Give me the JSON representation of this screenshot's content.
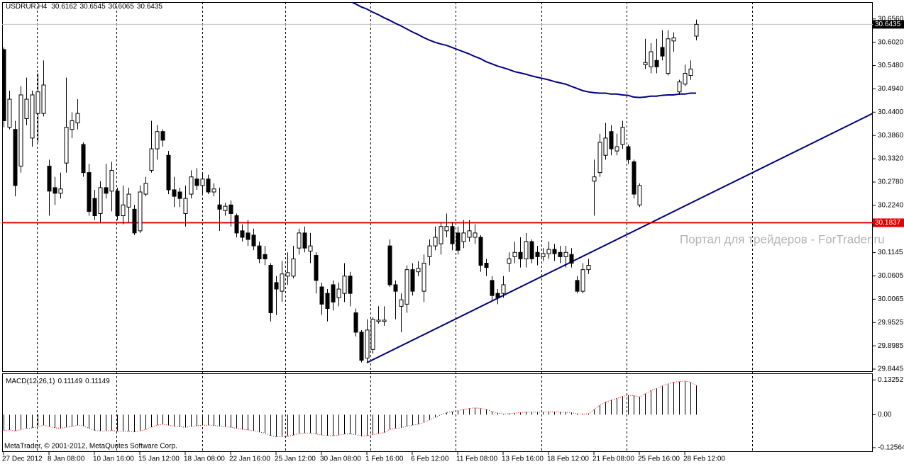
{
  "chart_data": {
    "type": "candlestick",
    "title": "USDRUR,H4",
    "categories": [
      "27 Dec 2012",
      null,
      null,
      null,
      null,
      null,
      null,
      null,
      "8 Jan 08:00",
      null,
      null,
      null,
      null,
      null,
      null,
      null,
      "10 Jan 16:00",
      null,
      null,
      null,
      null,
      null,
      null,
      null,
      "15 Jan 12:00",
      null,
      null,
      null,
      null,
      null,
      null,
      null,
      "18 Jan 08:00",
      null,
      null,
      null,
      null,
      null,
      null,
      null,
      "22 Jan 16:00",
      null,
      null,
      null,
      null,
      null,
      null,
      null,
      "25 Jan 12:00",
      null,
      null,
      null,
      null,
      null,
      null,
      null,
      "30 Jan 08:00",
      null,
      null,
      null,
      null,
      null,
      null,
      null,
      "1 Feb 16:00",
      null,
      null,
      null,
      null,
      null,
      null,
      null,
      "6 Feb 12:00",
      null,
      null,
      null,
      null,
      null,
      null,
      null,
      "11 Feb 08:00",
      null,
      null,
      null,
      null,
      null,
      null,
      null,
      "13 Feb 16:00",
      null,
      null,
      null,
      null,
      null,
      null,
      null,
      "18 Feb 12:00",
      null,
      null,
      null,
      null,
      null,
      null,
      null,
      "21 Feb 08:00",
      null,
      null,
      null,
      null,
      null,
      null,
      null,
      "25 Feb 16:00",
      null,
      null,
      null,
      null,
      null,
      null,
      null,
      "28 Feb 12:00",
      null,
      null
    ],
    "ohlc": [
      [
        30.585,
        30.59,
        30.405,
        30.42
      ],
      [
        30.405,
        30.49,
        30.4,
        30.47
      ],
      [
        30.4,
        30.42,
        30.245,
        30.27
      ],
      [
        30.315,
        30.5,
        30.3,
        30.48
      ],
      [
        30.425,
        30.52,
        30.41,
        30.47
      ],
      [
        30.38,
        30.49,
        30.36,
        30.48
      ],
      [
        30.437,
        30.53,
        30.37,
        30.487
      ],
      [
        30.437,
        30.56,
        30.43,
        30.503
      ],
      [
        30.315,
        30.33,
        30.2,
        30.257
      ],
      [
        30.265,
        30.29,
        30.225,
        30.252
      ],
      [
        30.252,
        30.3,
        30.24,
        30.262
      ],
      [
        30.322,
        30.52,
        30.3,
        30.405
      ],
      [
        30.4,
        30.44,
        30.38,
        30.42
      ],
      [
        30.415,
        30.47,
        30.4,
        30.437
      ],
      [
        30.365,
        30.37,
        30.29,
        30.3
      ],
      [
        30.3,
        30.32,
        30.2,
        30.21
      ],
      [
        30.24,
        30.26,
        30.19,
        30.2
      ],
      [
        30.205,
        30.28,
        30.185,
        30.265
      ],
      [
        30.265,
        30.32,
        30.24,
        30.252
      ],
      [
        30.257,
        30.325,
        30.21,
        30.305
      ],
      [
        30.257,
        30.265,
        30.19,
        30.2
      ],
      [
        30.2,
        30.27,
        30.18,
        30.225
      ],
      [
        30.22,
        30.265,
        30.185,
        30.25
      ],
      [
        30.215,
        30.225,
        30.155,
        30.16
      ],
      [
        30.165,
        30.27,
        30.16,
        30.255
      ],
      [
        30.25,
        30.29,
        30.245,
        30.275
      ],
      [
        30.305,
        30.42,
        30.3,
        30.355
      ],
      [
        30.355,
        30.41,
        30.33,
        30.395
      ],
      [
        30.395,
        30.4,
        30.36,
        30.375
      ],
      [
        30.34,
        30.35,
        30.25,
        30.26
      ],
      [
        30.26,
        30.29,
        30.22,
        30.245
      ],
      [
        30.255,
        30.265,
        30.22,
        30.24
      ],
      [
        30.205,
        30.27,
        30.175,
        30.24
      ],
      [
        30.25,
        30.305,
        30.24,
        30.29
      ],
      [
        30.285,
        30.31,
        30.26,
        30.27
      ],
      [
        30.27,
        30.3,
        30.25,
        30.285
      ],
      [
        30.285,
        30.295,
        30.25,
        30.255
      ],
      [
        30.255,
        30.275,
        30.245,
        30.262
      ],
      [
        30.225,
        30.265,
        30.165,
        30.215
      ],
      [
        30.212,
        30.23,
        30.2,
        30.222
      ],
      [
        30.225,
        30.235,
        30.175,
        30.205
      ],
      [
        30.2,
        30.205,
        30.15,
        30.16
      ],
      [
        30.165,
        30.18,
        30.14,
        30.15
      ],
      [
        30.16,
        30.19,
        30.13,
        30.145
      ],
      [
        30.155,
        30.17,
        30.12,
        30.13
      ],
      [
        30.13,
        30.14,
        30.09,
        30.1
      ],
      [
        30.11,
        30.13,
        30.085,
        30.1
      ],
      [
        30.085,
        30.09,
        29.955,
        29.975
      ],
      [
        30.045,
        30.06,
        29.97,
        30.03
      ],
      [
        30.025,
        30.095,
        30.0,
        30.065
      ],
      [
        30.06,
        30.115,
        30.04,
        30.068
      ],
      [
        30.06,
        30.13,
        30.055,
        30.1
      ],
      [
        30.125,
        30.17,
        30.11,
        30.16
      ],
      [
        30.16,
        30.175,
        30.115,
        30.125
      ],
      [
        30.118,
        30.16,
        30.09,
        30.13
      ],
      [
        30.108,
        30.115,
        30.02,
        30.05
      ],
      [
        30.035,
        30.045,
        29.97,
        29.995
      ],
      [
        30.02,
        30.03,
        29.955,
        29.985
      ],
      [
        30.04,
        30.05,
        29.98,
        30.0
      ],
      [
        30.01,
        30.045,
        29.99,
        30.03
      ],
      [
        30.02,
        30.09,
        30.0,
        30.06
      ],
      [
        30.06,
        30.07,
        29.99,
        30.02
      ],
      [
        29.975,
        29.985,
        29.92,
        29.93
      ],
      [
        29.93,
        29.935,
        29.86,
        29.865
      ],
      [
        29.87,
        29.96,
        29.86,
        29.935
      ],
      [
        29.89,
        29.965,
        29.88,
        29.96
      ],
      [
        29.955,
        29.99,
        29.95,
        29.958
      ],
      [
        29.955,
        29.99,
        29.945,
        29.958
      ],
      [
        30.13,
        30.145,
        30.035,
        30.04
      ],
      [
        30.04,
        30.05,
        29.96,
        30.025
      ],
      [
        29.99,
        30.02,
        29.93,
        30.005
      ],
      [
        29.995,
        30.085,
        29.975,
        30.075
      ],
      [
        30.075,
        30.09,
        30.015,
        30.025
      ],
      [
        30.07,
        30.095,
        30.06,
        30.078
      ],
      [
        30.025,
        30.11,
        30.0,
        30.09
      ],
      [
        30.105,
        30.145,
        30.085,
        30.13
      ],
      [
        30.13,
        30.175,
        30.12,
        30.15
      ],
      [
        30.135,
        30.185,
        30.11,
        30.175
      ],
      [
        30.165,
        30.205,
        30.15,
        30.175
      ],
      [
        30.175,
        30.185,
        30.12,
        30.135
      ],
      [
        30.16,
        30.175,
        30.11,
        30.12
      ],
      [
        30.14,
        30.19,
        30.125,
        30.16
      ],
      [
        30.15,
        30.19,
        30.14,
        30.165
      ],
      [
        30.15,
        30.18,
        30.135,
        30.16
      ],
      [
        30.15,
        30.155,
        30.07,
        30.085
      ],
      [
        30.09,
        30.1,
        30.06,
        30.08
      ],
      [
        30.05,
        30.06,
        30.005,
        30.015
      ],
      [
        30.02,
        30.03,
        29.995,
        30.01
      ],
      [
        30.02,
        30.06,
        30.01,
        30.04
      ],
      [
        30.09,
        30.115,
        30.07,
        30.1
      ],
      [
        30.105,
        30.14,
        30.09,
        30.115
      ],
      [
        30.115,
        30.15,
        30.08,
        30.1
      ],
      [
        30.1,
        30.16,
        30.08,
        30.14
      ],
      [
        30.14,
        30.145,
        30.09,
        30.1
      ],
      [
        30.115,
        30.13,
        30.085,
        30.105
      ],
      [
        30.105,
        30.125,
        30.095,
        30.112
      ],
      [
        30.112,
        30.14,
        30.1,
        30.122
      ],
      [
        30.122,
        30.135,
        30.095,
        30.112
      ],
      [
        30.115,
        30.13,
        30.09,
        30.105
      ],
      [
        30.105,
        30.13,
        30.08,
        30.115
      ],
      [
        30.11,
        30.125,
        30.08,
        30.09
      ],
      [
        30.05,
        30.06,
        30.02,
        30.025
      ],
      [
        30.025,
        30.09,
        30.02,
        30.075
      ],
      [
        30.075,
        30.1,
        30.065,
        30.085
      ],
      [
        30.28,
        30.33,
        30.2,
        30.29
      ],
      [
        30.3,
        30.39,
        30.29,
        30.37
      ],
      [
        30.34,
        30.415,
        30.33,
        30.38
      ],
      [
        30.395,
        30.41,
        30.34,
        30.355
      ],
      [
        30.35,
        30.39,
        30.34,
        30.36
      ],
      [
        30.365,
        30.42,
        30.355,
        30.405
      ],
      [
        30.36,
        30.365,
        30.32,
        30.33
      ],
      [
        30.325,
        30.33,
        30.24,
        30.25
      ],
      [
        30.225,
        30.275,
        30.22,
        30.27
      ],
      [
        30.55,
        30.61,
        30.54,
        30.555
      ],
      [
        30.545,
        30.6,
        30.53,
        30.58
      ],
      [
        30.56,
        30.61,
        30.53,
        30.545
      ],
      [
        30.59,
        30.63,
        30.56,
        30.57
      ],
      [
        30.53,
        30.63,
        30.525,
        30.61
      ],
      [
        30.605,
        30.625,
        30.58,
        30.612
      ],
      [
        30.487,
        30.515,
        30.48,
        30.51
      ],
      [
        30.505,
        30.55,
        30.5,
        30.53
      ],
      [
        30.525,
        30.56,
        30.515,
        30.54
      ],
      [
        30.6162,
        30.6545,
        30.6065,
        30.6435
      ]
    ],
    "up_color": "#ffffff",
    "down_color": "#000000",
    "ylim": [
      29.838,
      30.695
    ],
    "yticks": [
      {
        "value": 30.656,
        "label": "30.6560"
      },
      {
        "value": 30.602,
        "label": "30.6020"
      },
      {
        "value": 30.548,
        "label": "30.5480"
      },
      {
        "value": 30.494,
        "label": "30.4940"
      },
      {
        "value": 30.44,
        "label": "30.4400"
      },
      {
        "value": 30.386,
        "label": "30.3860"
      },
      {
        "value": 30.332,
        "label": "30.3320"
      },
      {
        "value": 30.278,
        "label": "30.2780"
      },
      {
        "value": 30.224,
        "label": "30.2240"
      },
      30.1145,
      30.0605,
      30.0065,
      29.9525,
      29.8985,
      29.8445
    ],
    "ma": {
      "color": "#000080",
      "values": [
        null,
        null,
        null,
        null,
        null,
        null,
        null,
        null,
        null,
        null,
        null,
        null,
        null,
        null,
        null,
        null,
        null,
        null,
        null,
        null,
        null,
        null,
        null,
        null,
        null,
        null,
        null,
        null,
        null,
        null,
        null,
        null,
        null,
        null,
        null,
        null,
        null,
        null,
        null,
        null,
        null,
        null,
        null,
        null,
        null,
        null,
        null,
        null,
        null,
        null,
        null,
        null,
        null,
        null,
        null,
        null,
        null,
        null,
        null,
        null,
        null,
        30.697,
        30.691,
        30.684,
        30.679,
        30.672,
        30.666,
        30.659,
        30.653,
        30.646,
        30.64,
        30.633,
        30.626,
        30.62,
        30.613,
        30.607,
        30.602,
        30.598,
        30.595,
        30.59,
        30.585,
        30.58,
        30.575,
        30.569,
        30.564,
        30.557,
        30.552,
        30.547,
        30.543,
        30.539,
        30.534,
        30.531,
        30.528,
        30.524,
        30.521,
        30.518,
        30.515,
        30.511,
        30.508,
        30.505,
        30.5,
        30.495,
        30.49,
        30.487,
        30.485,
        30.484,
        30.484,
        30.482,
        30.482,
        30.48,
        30.479,
        30.475,
        30.474,
        30.475,
        30.477,
        30.477,
        30.479,
        30.48,
        30.48,
        30.482,
        30.482,
        30.484,
        30.484
      ]
    },
    "hline": {
      "value": 30.1837,
      "color": "#e00000"
    },
    "macd": {
      "label": "MACD(12,26,1)",
      "color": "#000000",
      "signal_color": "#c00000",
      "ylim": [
        -0.142,
        0.155
      ],
      "yticks": [
        0.13252,
        {
          "value": 0,
          "label": "0.00"
        },
        -0.12564
      ],
      "values": [
        -0.06,
        -0.058,
        -0.062,
        -0.057,
        -0.052,
        -0.05,
        -0.046,
        -0.04,
        -0.045,
        -0.05,
        -0.052,
        -0.048,
        -0.044,
        -0.04,
        -0.043,
        -0.052,
        -0.06,
        -0.062,
        -0.062,
        -0.06,
        -0.063,
        -0.064,
        -0.063,
        -0.066,
        -0.062,
        -0.056,
        -0.048,
        -0.04,
        -0.036,
        -0.04,
        -0.044,
        -0.046,
        -0.048,
        -0.045,
        -0.042,
        -0.04,
        -0.04,
        -0.041,
        -0.044,
        -0.046,
        -0.048,
        -0.052,
        -0.056,
        -0.058,
        -0.061,
        -0.066,
        -0.07,
        -0.08,
        -0.084,
        -0.084,
        -0.082,
        -0.078,
        -0.072,
        -0.07,
        -0.07,
        -0.074,
        -0.078,
        -0.08,
        -0.08,
        -0.078,
        -0.074,
        -0.073,
        -0.076,
        -0.082,
        -0.08,
        -0.076,
        -0.072,
        -0.068,
        -0.056,
        -0.052,
        -0.05,
        -0.044,
        -0.04,
        -0.036,
        -0.03,
        -0.02,
        -0.01,
        0.0,
        0.008,
        0.012,
        0.016,
        0.02,
        0.024,
        0.026,
        0.024,
        0.02,
        0.012,
        0.006,
        0.002,
        0.004,
        0.006,
        0.008,
        0.01,
        0.01,
        0.01,
        0.01,
        0.011,
        0.011,
        0.01,
        0.01,
        0.008,
        0.004,
        0.002,
        0.004,
        0.02,
        0.036,
        0.048,
        0.056,
        0.062,
        0.07,
        0.074,
        0.072,
        0.068,
        0.08,
        0.092,
        0.1,
        0.11,
        0.118,
        0.124,
        0.126,
        0.128,
        0.124,
        0.11149
      ]
    },
    "watermark": "Портал для трейдеров - ForTrader.ru",
    "copyright": "MetaTrader, © 2001-2012, MetaQuotes Software Corp."
  }
}
